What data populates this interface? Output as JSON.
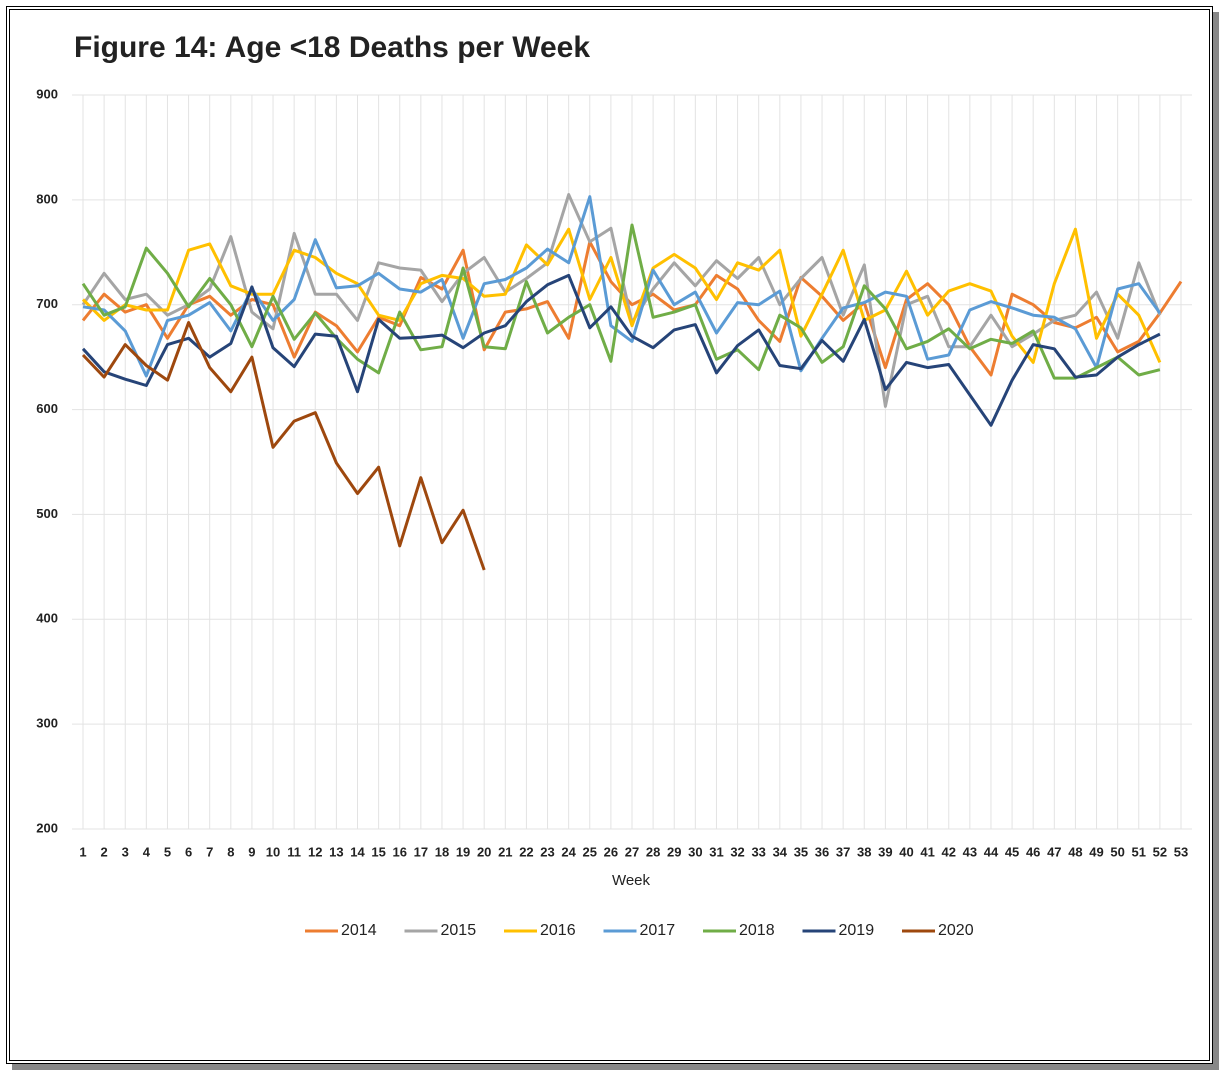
{
  "chart_data": {
    "type": "line",
    "title": "Figure 14: Age <18 Deaths per Week",
    "x_label": "Week",
    "categories": [
      "1",
      "2",
      "3",
      "4",
      "5",
      "6",
      "7",
      "8",
      "9",
      "10",
      "11",
      "12",
      "13",
      "14",
      "15",
      "16",
      "17",
      "18",
      "19",
      "20",
      "21",
      "22",
      "23",
      "24",
      "25",
      "26",
      "27",
      "28",
      "29",
      "30",
      "31",
      "32",
      "33",
      "34",
      "35",
      "36",
      "37",
      "38",
      "39",
      "40",
      "41",
      "42",
      "43",
      "44",
      "45",
      "46",
      "47",
      "48",
      "49",
      "50",
      "51",
      "52",
      "53"
    ],
    "ylim": [
      200,
      900
    ],
    "yticks": [
      200,
      300,
      400,
      500,
      600,
      700,
      800,
      900
    ],
    "grid": true,
    "legend": "bottom",
    "series": [
      {
        "name": "2014",
        "color": "#ed7d31",
        "values": [
          685,
          710,
          693,
          700,
          668,
          700,
          708,
          690,
          705,
          700,
          650,
          693,
          680,
          655,
          688,
          680,
          726,
          715,
          752,
          657,
          693,
          696,
          703,
          668,
          760,
          722,
          700,
          710,
          695,
          700,
          728,
          715,
          685,
          665,
          726,
          708,
          685,
          702,
          640,
          705,
          720,
          700,
          660,
          633,
          710,
          700,
          683,
          678,
          688,
          655,
          665,
          692,
          722
        ]
      },
      {
        "name": "2015",
        "color": "#a5a5a5",
        "values": [
          700,
          730,
          705,
          710,
          690,
          700,
          715,
          765,
          693,
          677,
          768,
          710,
          710,
          685,
          740,
          735,
          733,
          703,
          730,
          745,
          712,
          725,
          740,
          805,
          760,
          773,
          683,
          715,
          740,
          718,
          742,
          725,
          745,
          700,
          725,
          745,
          690,
          738,
          603,
          700,
          708,
          660,
          660,
          690,
          660,
          672,
          685,
          690,
          712,
          668,
          740,
          690,
          null
        ]
      },
      {
        "name": "2016",
        "color": "#ffc000",
        "values": [
          705,
          685,
          700,
          695,
          695,
          752,
          758,
          718,
          710,
          710,
          752,
          745,
          730,
          720,
          690,
          685,
          720,
          728,
          725,
          708,
          710,
          757,
          738,
          772,
          705,
          745,
          680,
          735,
          748,
          735,
          705,
          740,
          733,
          752,
          670,
          710,
          752,
          685,
          695,
          732,
          690,
          713,
          720,
          713,
          670,
          645,
          720,
          772,
          668,
          710,
          690,
          645,
          null
        ]
      },
      {
        "name": "2017",
        "color": "#5b9bd5",
        "values": [
          698,
          695,
          675,
          632,
          685,
          690,
          702,
          675,
          715,
          685,
          705,
          762,
          716,
          718,
          730,
          715,
          712,
          724,
          668,
          720,
          724,
          735,
          753,
          740,
          803,
          680,
          665,
          733,
          700,
          712,
          673,
          702,
          700,
          713,
          637,
          668,
          697,
          702,
          712,
          708,
          648,
          652,
          695,
          703,
          697,
          690,
          688,
          677,
          640,
          715,
          720,
          692,
          null
        ]
      },
      {
        "name": "2018",
        "color": "#70ad47",
        "values": [
          720,
          690,
          698,
          754,
          730,
          698,
          725,
          700,
          660,
          708,
          667,
          692,
          668,
          648,
          635,
          693,
          657,
          660,
          735,
          660,
          658,
          722,
          673,
          688,
          700,
          646,
          776,
          688,
          693,
          700,
          648,
          657,
          638,
          690,
          678,
          645,
          660,
          718,
          696,
          658,
          665,
          677,
          658,
          667,
          663,
          675,
          630,
          630,
          640,
          650,
          633,
          638,
          null
        ]
      },
      {
        "name": "2019",
        "color": "#264478",
        "values": [
          658,
          636,
          629,
          623,
          662,
          668,
          650,
          663,
          717,
          659,
          641,
          672,
          670,
          617,
          686,
          668,
          669,
          671,
          659,
          673,
          680,
          703,
          719,
          728,
          678,
          698,
          670,
          659,
          676,
          681,
          635,
          661,
          676,
          642,
          639,
          666,
          646,
          686,
          619,
          645,
          640,
          643,
          614,
          585,
          628,
          662,
          658,
          631,
          633,
          650,
          662,
          672,
          null
        ]
      },
      {
        "name": "2020",
        "color": "#9e480e",
        "values": [
          652,
          631,
          662,
          642,
          628,
          683,
          640,
          617,
          650,
          564,
          589,
          597,
          549,
          520,
          545,
          470,
          535,
          473,
          504,
          447,
          null,
          null,
          null,
          null,
          null,
          null,
          null,
          null,
          null,
          null,
          null,
          null,
          null,
          null,
          null,
          null,
          null,
          null,
          null,
          null,
          null,
          null,
          null,
          null,
          null,
          null,
          null,
          null,
          null,
          null,
          null,
          null,
          null
        ]
      }
    ]
  }
}
